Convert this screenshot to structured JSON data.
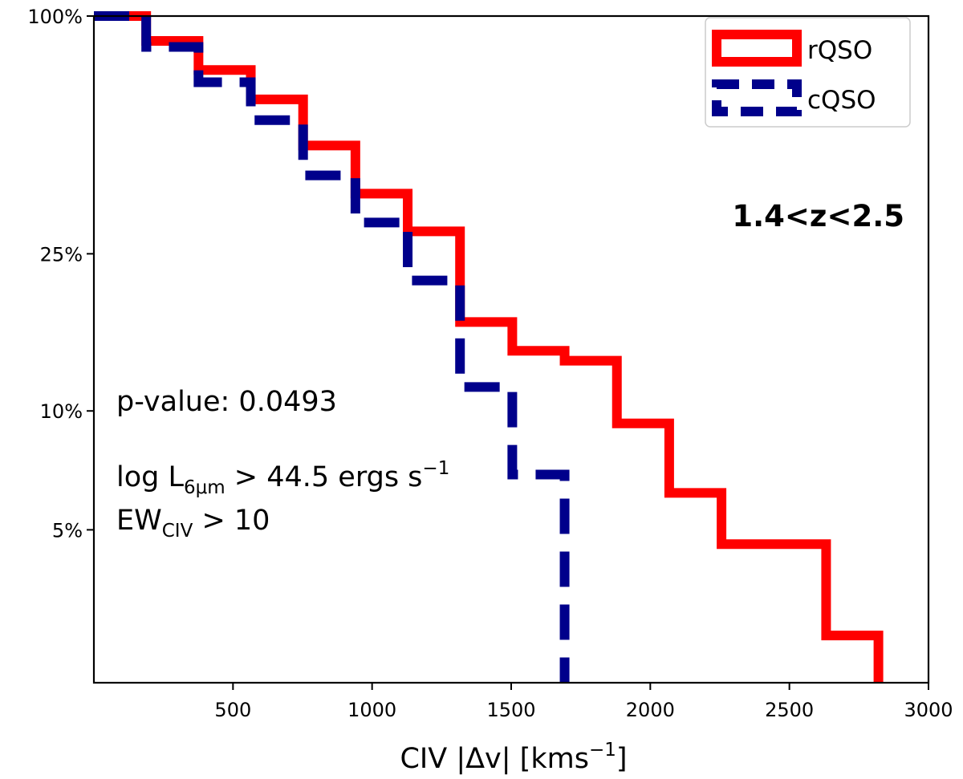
{
  "chart_data": {
    "type": "line",
    "subtype": "step-histogram (reverse cumulative, log y)",
    "title": "",
    "xlabel_parts": [
      "CIV |",
      "Δv",
      "| [kms",
      "−1",
      "]"
    ],
    "ylabel": "",
    "xlim": [
      0,
      3000
    ],
    "ylim": [
      2.05,
      100
    ],
    "yscale": "log",
    "x_ticks": [
      500,
      1000,
      1500,
      2000,
      2500,
      3000
    ],
    "x_tick_labels": [
      "500",
      "1000",
      "1500",
      "2000",
      "2500",
      "3000"
    ],
    "y_ticks": [
      100,
      25,
      10,
      5
    ],
    "y_tick_labels": [
      "100%",
      "25%",
      "10%",
      "5%"
    ],
    "legend_position": "top-right",
    "series": [
      {
        "name": "rQSO",
        "color": "#ff0000",
        "style": "solid",
        "bin_edges": [
          0,
          188,
          376,
          564,
          752,
          940,
          1128,
          1316,
          1504,
          1692,
          1880,
          2068,
          2256,
          2444,
          2632,
          2820
        ],
        "values": [
          100,
          86.5,
          73,
          61.5,
          47,
          35.5,
          28.5,
          16.8,
          14.2,
          13.4,
          9.3,
          6.2,
          4.6,
          4.6,
          2.7
        ]
      },
      {
        "name": "cQSO",
        "color": "#00008b",
        "style": "dashed",
        "bin_edges": [
          0,
          188,
          376,
          564,
          752,
          940,
          1128,
          1316,
          1504,
          1692
        ],
        "values": [
          100,
          83.5,
          68,
          54.5,
          39.5,
          30,
          21.4,
          11.5,
          6.9
        ]
      }
    ],
    "annotations": {
      "redshift": "1.4<z<2.5",
      "pvalue": "p-value: 0.0493",
      "lum_parts": [
        "log L",
        "6μm",
        " > 44.5 ergs s",
        "−1"
      ],
      "ew_parts": [
        "EW",
        "CIV",
        " > 10"
      ]
    }
  }
}
